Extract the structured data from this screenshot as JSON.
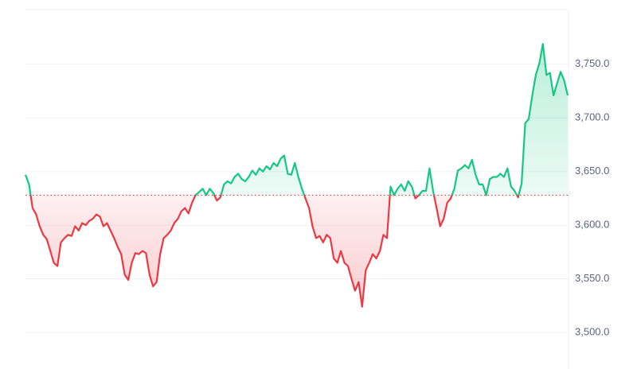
{
  "chart_data": {
    "type": "line",
    "values": [
      3647,
      3638,
      3616,
      3610,
      3599,
      3591,
      3587,
      3576,
      3565,
      3562,
      3584,
      3588,
      3591,
      3590,
      3599,
      3595,
      3602,
      3600,
      3604,
      3606,
      3610,
      3608,
      3599,
      3602,
      3595,
      3588,
      3580,
      3573,
      3554,
      3549,
      3565,
      3574,
      3573,
      3576,
      3574,
      3554,
      3543,
      3547,
      3573,
      3588,
      3591,
      3595,
      3602,
      3606,
      3613,
      3616,
      3611,
      3621,
      3628,
      3631,
      3634,
      3628,
      3634,
      3630,
      3623,
      3626,
      3638,
      3641,
      3639,
      3645,
      3648,
      3643,
      3641,
      3645,
      3651,
      3647,
      3653,
      3650,
      3655,
      3652,
      3658,
      3655,
      3662,
      3665,
      3648,
      3647,
      3658,
      3645,
      3634,
      3625,
      3616,
      3599,
      3588,
      3590,
      3584,
      3591,
      3588,
      3569,
      3565,
      3576,
      3565,
      3562,
      3550,
      3539,
      3547,
      3524,
      3558,
      3565,
      3573,
      3569,
      3576,
      3591,
      3588,
      3636,
      3628,
      3634,
      3638,
      3632,
      3641,
      3636,
      3625,
      3628,
      3632,
      3632,
      3653,
      3632,
      3616,
      3599,
      3606,
      3621,
      3625,
      3634,
      3651,
      3653,
      3656,
      3653,
      3661,
      3647,
      3638,
      3638,
      3628,
      3643,
      3645,
      3645,
      3648,
      3645,
      3653,
      3636,
      3632,
      3626,
      3639,
      3695,
      3699,
      3721,
      3740,
      3751,
      3769,
      3740,
      3742,
      3721,
      3732,
      3743,
      3735,
      3721
    ],
    "baseline": 3628,
    "up_color": "#16c784",
    "down_color": "#ea3943",
    "ylim": [
      3466,
      3801
    ],
    "yticks": [
      {
        "value": 3500,
        "label": "3,500.0"
      },
      {
        "value": 3550,
        "label": "3,550.0"
      },
      {
        "value": 3600,
        "label": "3,600.0"
      },
      {
        "value": 3650,
        "label": "3,650.0"
      },
      {
        "value": 3700,
        "label": "3,700.0"
      },
      {
        "value": 3750,
        "label": "3,750.0"
      }
    ],
    "grid": true
  }
}
